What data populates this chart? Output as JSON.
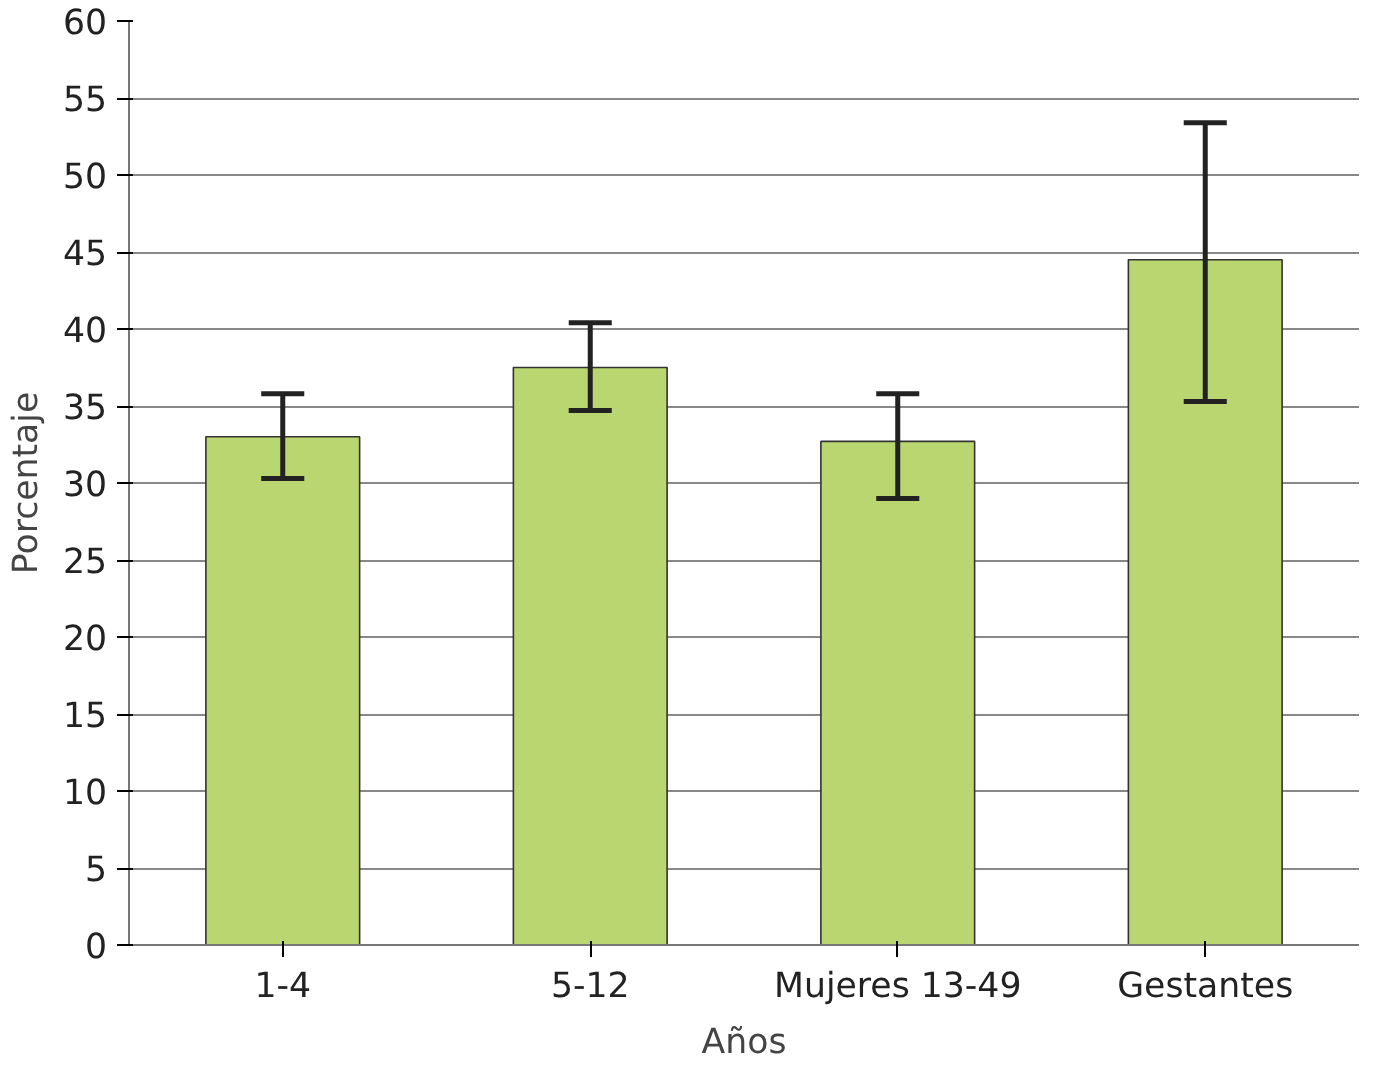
{
  "chart_data": {
    "type": "bar",
    "xlabel": "Años",
    "ylabel": "Porcentaje",
    "categories": [
      "1-4",
      "5-12",
      "Mujeres 13-49",
      "Gestantes"
    ],
    "values": [
      33.0,
      37.5,
      32.7,
      44.5
    ],
    "errors": [
      [
        30.3,
        35.8
      ],
      [
        34.7,
        40.4
      ],
      [
        29.0,
        35.8
      ],
      [
        35.3,
        53.4
      ]
    ],
    "color": "#b9d671",
    "ylim": [
      0,
      60
    ],
    "yticks": [
      0,
      5,
      10,
      15,
      20,
      25,
      30,
      35,
      40,
      45,
      50,
      55,
      60
    ],
    "grid": "y"
  }
}
